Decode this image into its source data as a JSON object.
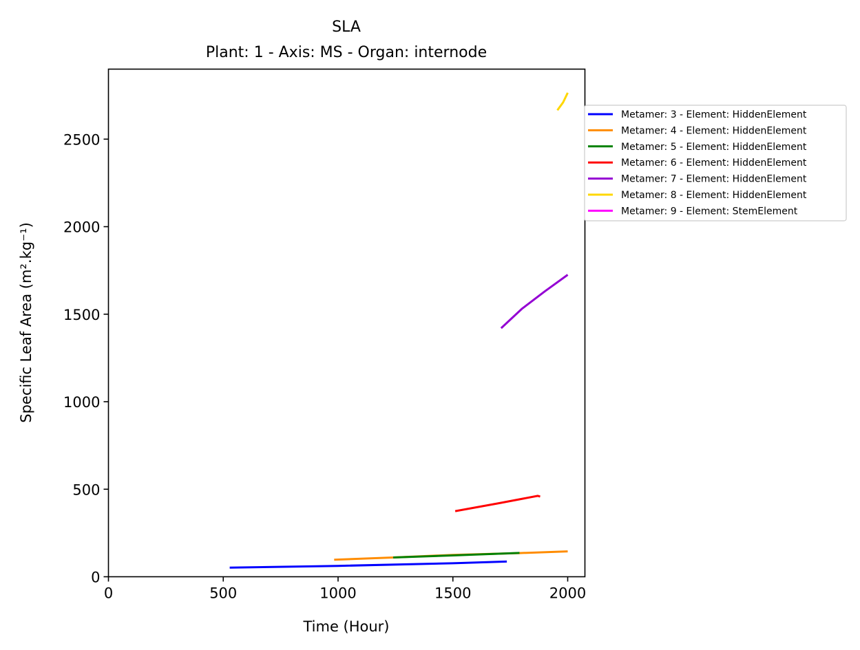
{
  "chart_data": {
    "type": "line",
    "title": "SLA",
    "subtitle": "Plant: 1 - Axis: MS - Organ: internode",
    "xlabel": "Time (Hour)",
    "ylabel": "Specific Leaf Area (m².kg⁻¹)",
    "xlim": [
      0,
      2075
    ],
    "ylim": [
      0,
      2900
    ],
    "xticks": [
      0,
      500,
      1000,
      1500,
      2000
    ],
    "yticks": [
      0,
      500,
      1000,
      1500,
      2000,
      2500
    ],
    "grid": false,
    "legend_position": "right, outside plot area",
    "series": [
      {
        "name": "Metamer: 3 - Element: HiddenElement",
        "color": "#0000ff",
        "x": [
          528,
          1000,
          1500,
          1735
        ],
        "y": [
          52,
          62,
          77,
          87
        ]
      },
      {
        "name": "Metamer: 4 - Element: HiddenElement",
        "color": "#ff8c00",
        "x": [
          983,
          1240,
          1500,
          1790,
          2000
        ],
        "y": [
          97,
          110,
          125,
          135,
          145
        ]
      },
      {
        "name": "Metamer: 5 - Element: HiddenElement",
        "color": "#008000",
        "x": [
          1240,
          1500,
          1790
        ],
        "y": [
          110,
          122,
          136
        ]
      },
      {
        "name": "Metamer: 6 - Element: HiddenElement",
        "color": "#ff0000",
        "x": [
          1510,
          1700,
          1870,
          1880
        ],
        "y": [
          375,
          420,
          462,
          458
        ]
      },
      {
        "name": "Metamer: 7 - Element: HiddenElement",
        "color": "#9400d3",
        "x": [
          1710,
          1800,
          1900,
          2000
        ],
        "y": [
          1420,
          1530,
          1630,
          1725
        ]
      },
      {
        "name": "Metamer: 8 - Element: HiddenElement",
        "color": "#ffd700",
        "x": [
          1955,
          1980,
          2000
        ],
        "y": [
          2665,
          2710,
          2765
        ]
      },
      {
        "name": "Metamer: 9 - Element: StemElement",
        "color": "#ff00ff",
        "x": [],
        "y": []
      }
    ]
  }
}
